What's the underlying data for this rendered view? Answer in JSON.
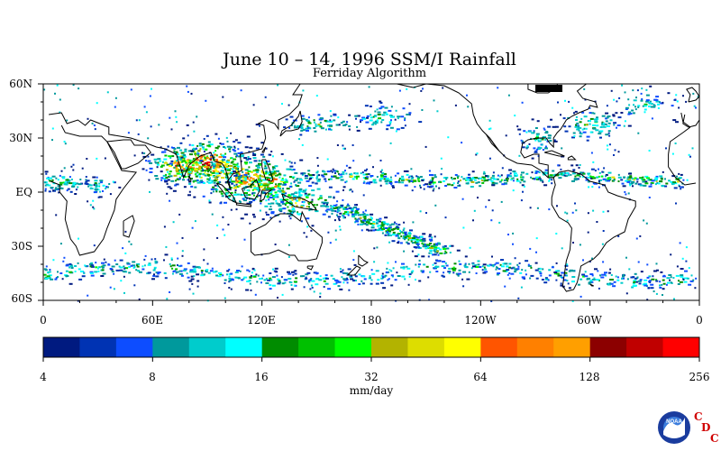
{
  "title": "June 10 – 14, 1996 SSM/I Rainfall",
  "subtitle": "Ferriday Algorithm",
  "lat_labels": [
    "60N",
    "30N",
    "EQ",
    "30S",
    "60S"
  ],
  "lon_labels": [
    "0",
    "60E",
    "120E",
    "180",
    "120W",
    "60W",
    "0"
  ],
  "colorbar": {
    "colors": [
      "#001a80",
      "#0033b3",
      "#0d4dff",
      "#00999c",
      "#00cccc",
      "#00ffff",
      "#008c00",
      "#00c000",
      "#00ff00",
      "#b3b300",
      "#dddd00",
      "#ffff00",
      "#ff5500",
      "#ff8000",
      "#ff9f00",
      "#8c0000",
      "#c00000",
      "#ff0000"
    ],
    "tick_labels": [
      "4",
      "8",
      "16",
      "32",
      "64",
      "128",
      "256"
    ],
    "unit_label": "mm/day"
  },
  "logo": {
    "text": "NOAA",
    "letters": [
      "C",
      "D",
      "C"
    ]
  }
}
